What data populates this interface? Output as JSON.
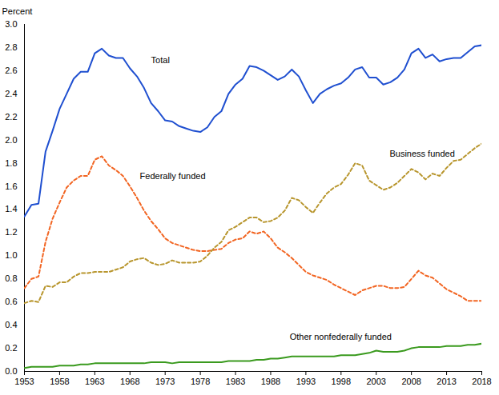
{
  "chart_data": {
    "type": "line",
    "y_label": "Percent",
    "x": [
      1953,
      1954,
      1955,
      1956,
      1957,
      1958,
      1959,
      1960,
      1961,
      1962,
      1963,
      1964,
      1965,
      1966,
      1967,
      1968,
      1969,
      1970,
      1971,
      1972,
      1973,
      1974,
      1975,
      1976,
      1977,
      1978,
      1979,
      1980,
      1981,
      1982,
      1983,
      1984,
      1985,
      1986,
      1987,
      1988,
      1989,
      1990,
      1991,
      1992,
      1993,
      1994,
      1995,
      1996,
      1997,
      1998,
      1999,
      2000,
      2001,
      2002,
      2003,
      2004,
      2005,
      2006,
      2007,
      2008,
      2009,
      2010,
      2011,
      2012,
      2013,
      2014,
      2015,
      2016,
      2017,
      2018
    ],
    "xlim": [
      1953,
      2018
    ],
    "xticks": [
      1953,
      1958,
      1963,
      1968,
      1973,
      1978,
      1983,
      1988,
      1993,
      1998,
      2003,
      2008,
      2013,
      2018
    ],
    "ylim": [
      0,
      3.0
    ],
    "yticks": [
      {
        "value": 0,
        "label": "0.0"
      },
      0.2,
      0.4,
      0.6,
      0.8,
      {
        "value": 1,
        "label": "1.0"
      },
      1.2,
      1.4,
      1.6,
      1.8,
      {
        "value": 2,
        "label": "2.0"
      },
      2.2,
      2.4,
      2.6,
      2.8,
      {
        "value": 3,
        "label": "3.0"
      }
    ],
    "grid": false,
    "series": [
      {
        "name": "Total",
        "color": "#1f4fd0",
        "line_style": "solid",
        "label_x": 1971,
        "label_y": 2.69,
        "values": [
          1.34,
          1.44,
          1.45,
          1.9,
          2.08,
          2.27,
          2.4,
          2.53,
          2.59,
          2.59,
          2.75,
          2.79,
          2.73,
          2.71,
          2.71,
          2.62,
          2.55,
          2.45,
          2.32,
          2.25,
          2.17,
          2.16,
          2.12,
          2.1,
          2.08,
          2.07,
          2.11,
          2.2,
          2.25,
          2.4,
          2.48,
          2.53,
          2.64,
          2.63,
          2.6,
          2.56,
          2.52,
          2.55,
          2.61,
          2.55,
          2.43,
          2.32,
          2.4,
          2.44,
          2.47,
          2.49,
          2.54,
          2.61,
          2.63,
          2.54,
          2.54,
          2.48,
          2.5,
          2.54,
          2.61,
          2.75,
          2.79,
          2.71,
          2.74,
          2.68,
          2.7,
          2.71,
          2.71,
          2.76,
          2.81,
          2.82
        ]
      },
      {
        "name": "Federally funded",
        "color": "#f26522",
        "line_style": "dashed",
        "label_x": 1969.4,
        "label_y": 1.69,
        "values": [
          0.72,
          0.8,
          0.82,
          1.12,
          1.32,
          1.46,
          1.59,
          1.65,
          1.69,
          1.69,
          1.83,
          1.86,
          1.78,
          1.74,
          1.69,
          1.6,
          1.5,
          1.39,
          1.3,
          1.23,
          1.15,
          1.11,
          1.09,
          1.07,
          1.05,
          1.04,
          1.04,
          1.05,
          1.06,
          1.11,
          1.14,
          1.15,
          1.21,
          1.19,
          1.21,
          1.15,
          1.07,
          1.03,
          0.98,
          0.92,
          0.86,
          0.83,
          0.81,
          0.79,
          0.75,
          0.72,
          0.69,
          0.66,
          0.7,
          0.72,
          0.74,
          0.74,
          0.72,
          0.72,
          0.73,
          0.8,
          0.87,
          0.83,
          0.81,
          0.76,
          0.71,
          0.68,
          0.65,
          0.61,
          0.61,
          0.61
        ]
      },
      {
        "name": "Business funded",
        "color": "#b8962e",
        "line_style": "dashed",
        "label_x": 2004.9,
        "label_y": 1.88,
        "values": [
          0.59,
          0.61,
          0.6,
          0.74,
          0.73,
          0.77,
          0.77,
          0.82,
          0.85,
          0.85,
          0.86,
          0.86,
          0.86,
          0.88,
          0.9,
          0.95,
          0.97,
          0.98,
          0.94,
          0.92,
          0.93,
          0.96,
          0.94,
          0.94,
          0.94,
          0.95,
          1.0,
          1.07,
          1.12,
          1.22,
          1.25,
          1.29,
          1.33,
          1.33,
          1.29,
          1.3,
          1.33,
          1.39,
          1.5,
          1.48,
          1.42,
          1.37,
          1.46,
          1.54,
          1.59,
          1.62,
          1.7,
          1.8,
          1.78,
          1.65,
          1.61,
          1.57,
          1.59,
          1.63,
          1.69,
          1.75,
          1.72,
          1.66,
          1.71,
          1.69,
          1.76,
          1.82,
          1.83,
          1.88,
          1.93,
          1.97
        ]
      },
      {
        "name": "Other nonfederally funded",
        "color": "#3a9a1e",
        "line_style": "solid",
        "label_x": 1990.7,
        "label_y": 0.3,
        "values": [
          0.03,
          0.04,
          0.04,
          0.04,
          0.04,
          0.05,
          0.05,
          0.05,
          0.06,
          0.06,
          0.07,
          0.07,
          0.07,
          0.07,
          0.07,
          0.07,
          0.07,
          0.07,
          0.08,
          0.08,
          0.08,
          0.07,
          0.08,
          0.08,
          0.08,
          0.08,
          0.08,
          0.08,
          0.08,
          0.09,
          0.09,
          0.09,
          0.09,
          0.1,
          0.1,
          0.11,
          0.11,
          0.12,
          0.13,
          0.13,
          0.13,
          0.13,
          0.13,
          0.13,
          0.13,
          0.14,
          0.14,
          0.14,
          0.15,
          0.16,
          0.18,
          0.17,
          0.17,
          0.17,
          0.18,
          0.2,
          0.21,
          0.21,
          0.21,
          0.21,
          0.22,
          0.22,
          0.22,
          0.23,
          0.23,
          0.24
        ]
      }
    ]
  }
}
